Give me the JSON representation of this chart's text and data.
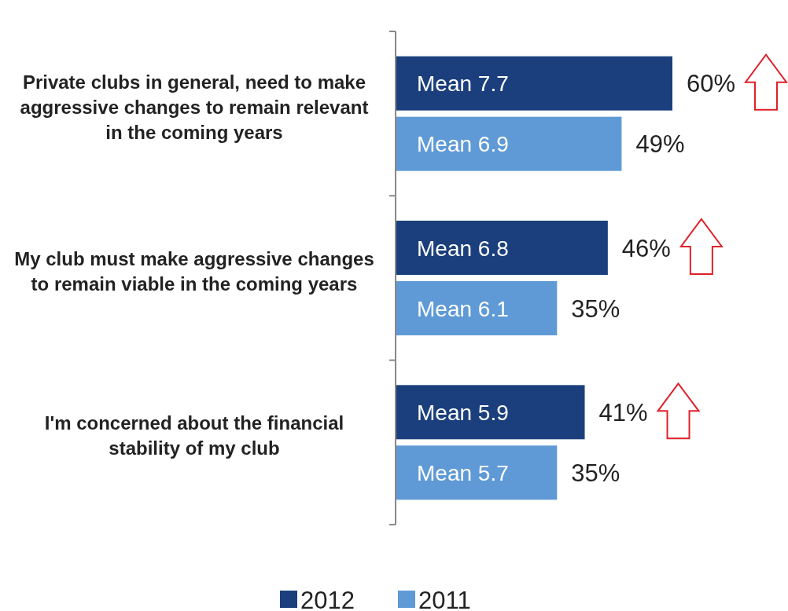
{
  "chart_data": {
    "type": "bar",
    "orientation": "horizontal",
    "categories": [
      "Private clubs in general, need to make aggressive changes to remain relevant in the coming years",
      "My club must make aggressive changes to remain viable in the coming years",
      "I'm concerned about the financial stability of my club"
    ],
    "series": [
      {
        "name": "2012",
        "color": "#1b3f7c",
        "values": [
          60,
          46,
          41
        ],
        "value_labels": [
          "60%",
          "46%",
          "41%"
        ]
      },
      {
        "name": "2011",
        "color": "#5f9ad6",
        "values": [
          49,
          35,
          35
        ],
        "value_labels": [
          "49%",
          "35%",
          "35%"
        ]
      }
    ],
    "annotations": [
      "Mean 7.7",
      "Mean 6.9",
      "Mean 6.8",
      "Mean 6.1",
      "Mean 5.9",
      "Mean 5.7"
    ],
    "legend": "bottom"
  }
}
